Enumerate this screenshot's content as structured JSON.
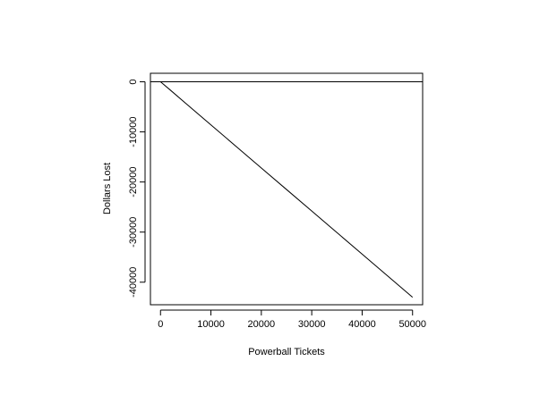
{
  "chart_data": {
    "type": "line",
    "title": "",
    "xlabel": "Powerball Tickets",
    "ylabel": "Dollars Lost",
    "xlim": [
      -2000,
      52000
    ],
    "ylim": [
      -44500,
      1700
    ],
    "x_ticks": [
      0,
      10000,
      20000,
      30000,
      40000,
      50000
    ],
    "y_ticks": [
      0,
      -10000,
      -20000,
      -30000,
      -40000
    ],
    "x_tick_labels": [
      "0",
      "10000",
      "20000",
      "30000",
      "40000",
      "50000"
    ],
    "y_tick_labels": [
      "0",
      "-10000",
      "-20000",
      "-30000",
      "-40000"
    ],
    "reference_line_y": 0,
    "grid": false,
    "legend": "none",
    "series": [
      {
        "x": [
          0,
          2000,
          5000,
          10000,
          15000,
          20000,
          25000,
          30000,
          35000,
          40000,
          45000,
          50000
        ],
        "values": [
          0,
          -1700,
          -4300,
          -8600,
          -12900,
          -17200,
          -21500,
          -25800,
          -30100,
          -34400,
          -38700,
          -43000
        ]
      }
    ]
  }
}
